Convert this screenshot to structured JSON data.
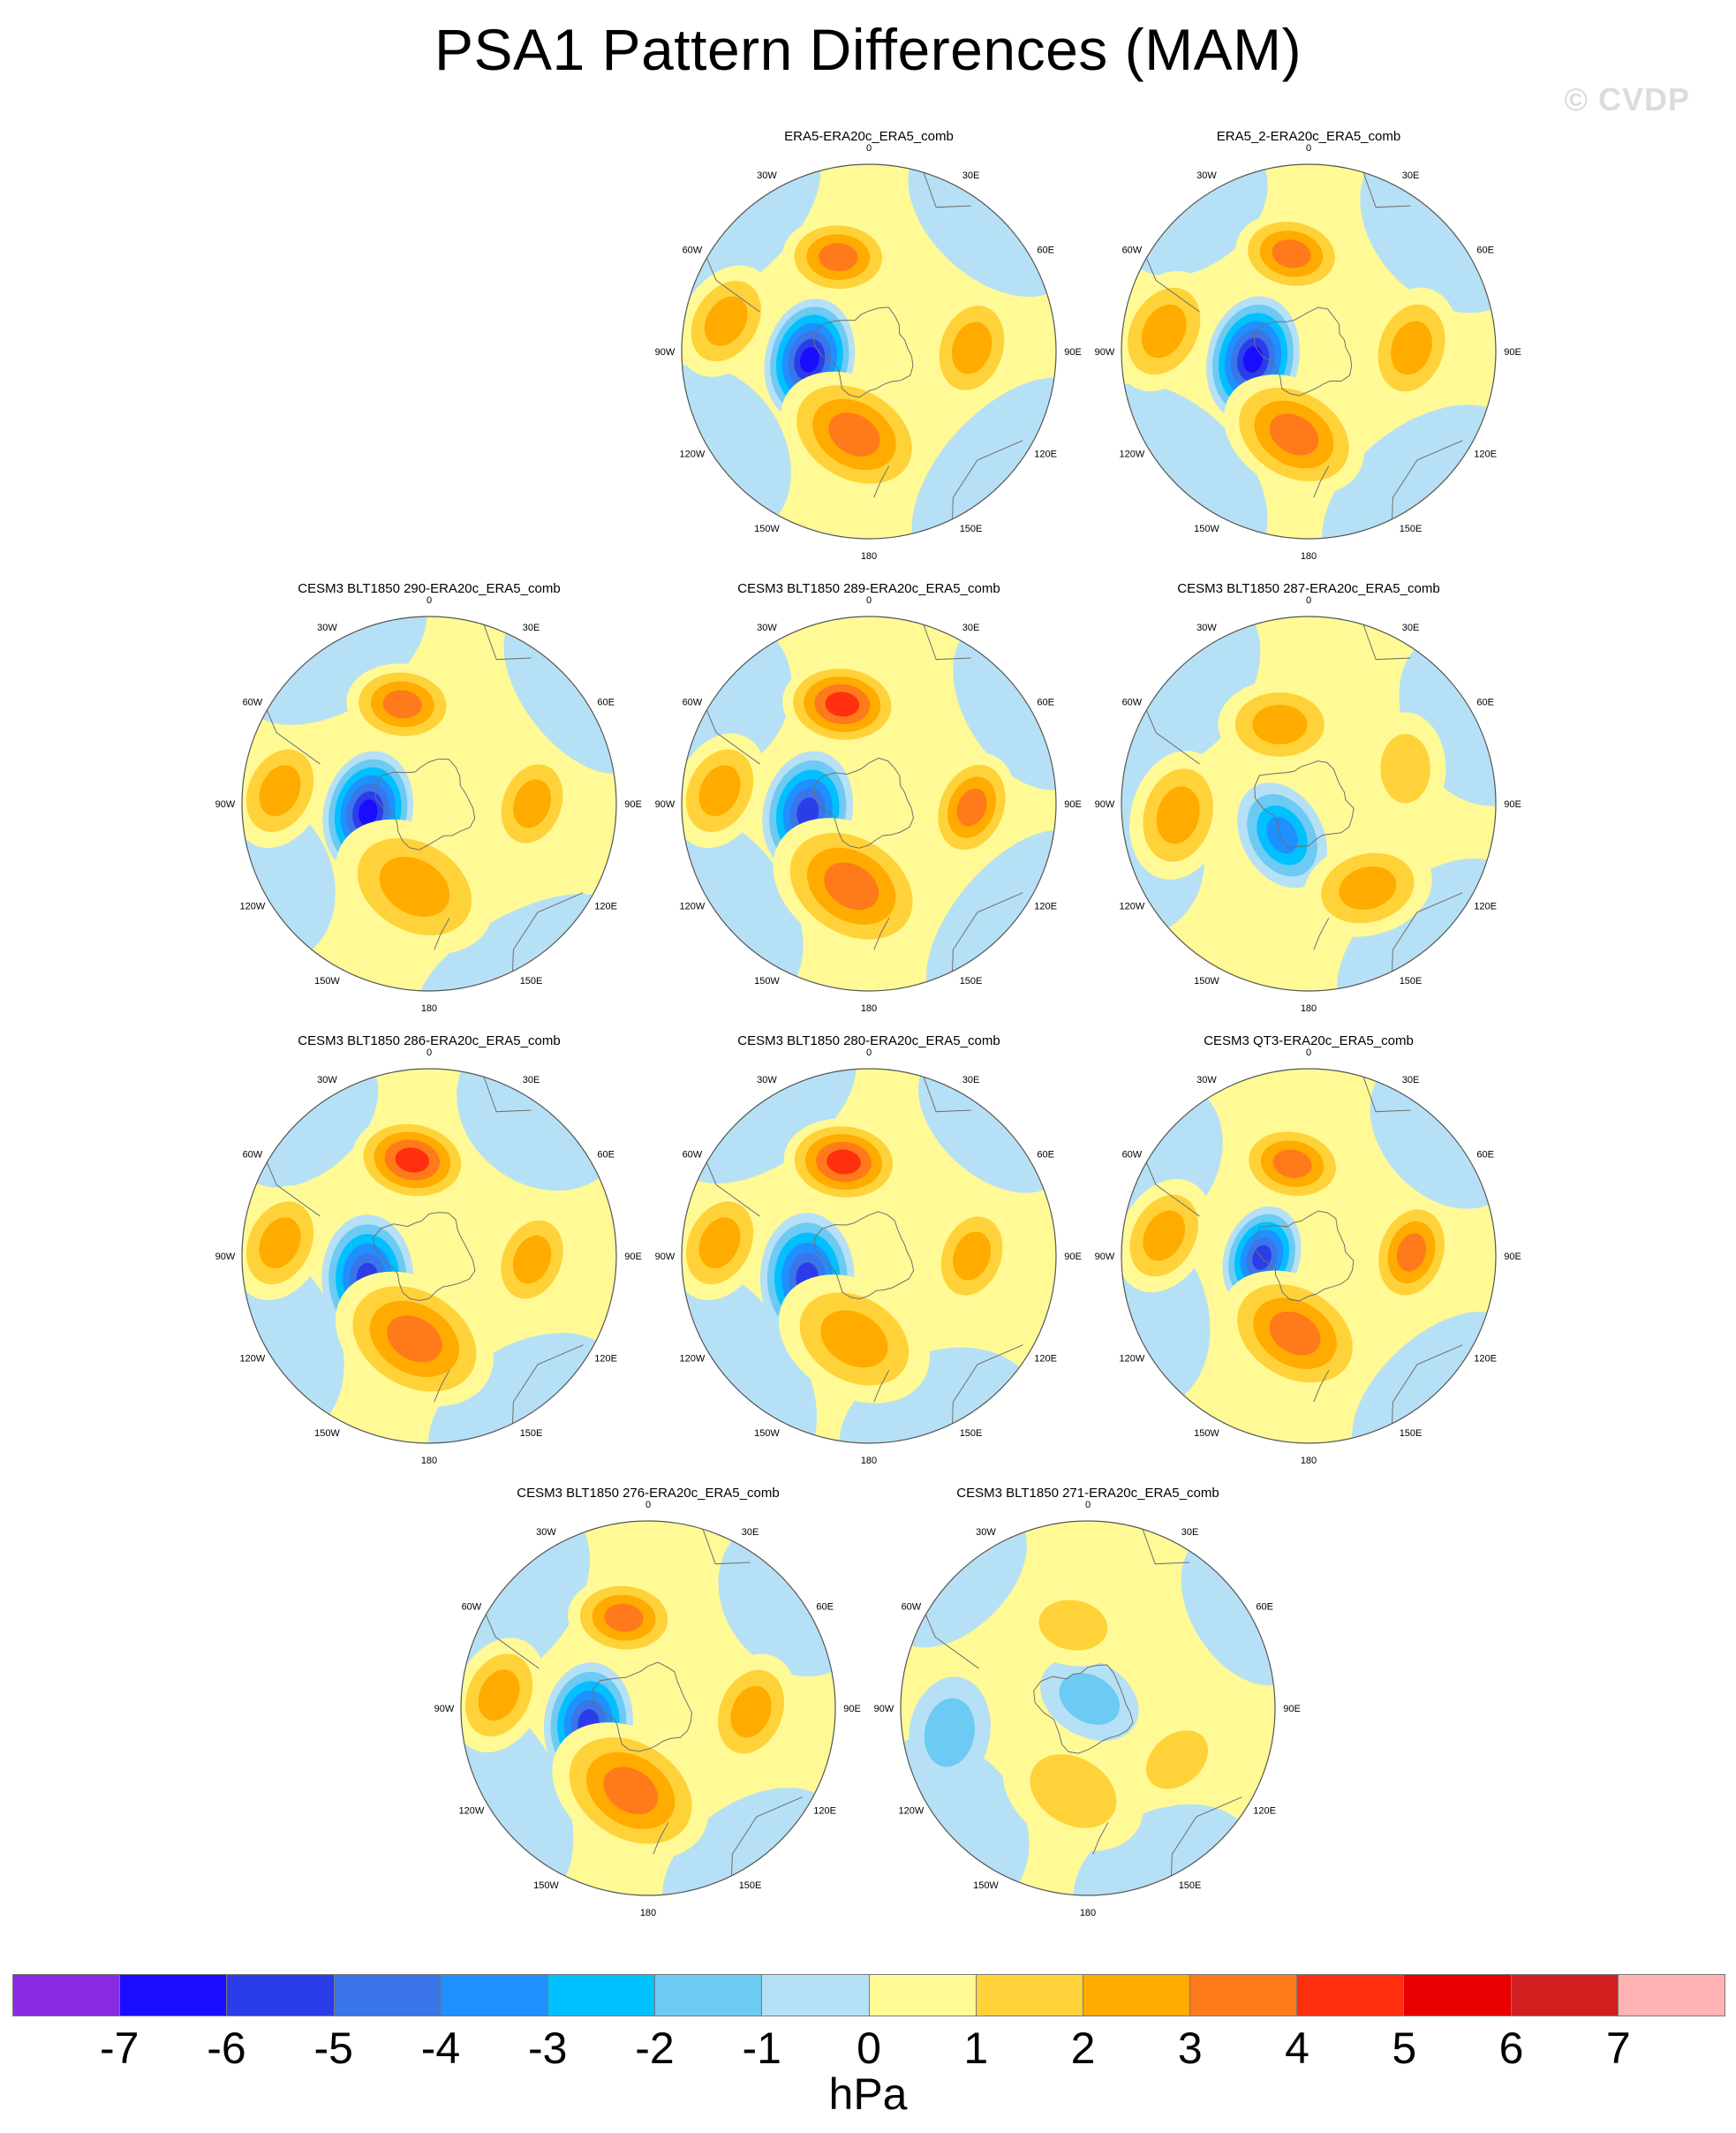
{
  "title": "PSA1 Pattern Differences (MAM)",
  "watermark": "© CVDP",
  "units": "hPa",
  "lon_labels": [
    "0",
    "30E",
    "60E",
    "90E",
    "120E",
    "150E",
    "180",
    "150W",
    "120W",
    "90W",
    "60W",
    "30W"
  ],
  "colors": {
    "background": "#ffffff",
    "outline": "#555555",
    "coast": "#707070"
  },
  "chart_data": {
    "type": "heatmap",
    "projection": "polar stereographic (Southern Hemisphere)",
    "title": "PSA1 Pattern Differences (MAM)",
    "units": "hPa",
    "colorbar": {
      "levels": [
        -7,
        -6,
        -5,
        -4,
        -3,
        -2,
        -1,
        0,
        1,
        2,
        3,
        4,
        5,
        6,
        7
      ],
      "colors": [
        "#8a2be2",
        "#1a0dff",
        "#2a3de8",
        "#3a75ea",
        "#1e90ff",
        "#00c0ff",
        "#6ccaf3",
        "#b6e0f5",
        "#fffa96",
        "#ffd23a",
        "#ffab00",
        "#ff7a1a",
        "#ff3010",
        "#e80000",
        "#d22020",
        "#ffb3b3"
      ]
    },
    "panels": [
      {
        "title": "ERA5-ERA20c_ERA5_comb",
        "features": [
          {
            "kind": "min",
            "lon": -98,
            "r": 0.32,
            "value": -6.3,
            "size": 0.33
          },
          {
            "kind": "max",
            "lon": -18,
            "r": 0.53,
            "value": 3.6,
            "size": 0.3
          },
          {
            "kind": "max",
            "lon": -170,
            "r": 0.45,
            "value": 3.4,
            "size": 0.42
          },
          {
            "kind": "max",
            "lon": 88,
            "r": 0.55,
            "value": 2.2,
            "size": 0.32
          },
          {
            "kind": "max",
            "lon": -78,
            "r": 0.78,
            "value": 2.4,
            "size": 0.32
          }
        ]
      },
      {
        "title": "ERA5_2-ERA20c_ERA5_comb",
        "features": [
          {
            "kind": "min",
            "lon": -98,
            "r": 0.3,
            "value": -6.2,
            "size": 0.34
          },
          {
            "kind": "max",
            "lon": -10,
            "r": 0.53,
            "value": 3.4,
            "size": 0.3
          },
          {
            "kind": "max",
            "lon": -170,
            "r": 0.45,
            "value": 3.6,
            "size": 0.4
          },
          {
            "kind": "max",
            "lon": 88,
            "r": 0.55,
            "value": 2.3,
            "size": 0.33
          },
          {
            "kind": "max",
            "lon": -82,
            "r": 0.78,
            "value": 2.6,
            "size": 0.34
          }
        ]
      },
      {
        "title": "CESM3 BLT1850 290-ERA20c_ERA5_comb",
        "features": [
          {
            "kind": "min",
            "lon": -98,
            "r": 0.33,
            "value": -6.4,
            "size": 0.33
          },
          {
            "kind": "max",
            "lon": -15,
            "r": 0.55,
            "value": 3.7,
            "size": 0.3
          },
          {
            "kind": "max",
            "lon": -170,
            "r": 0.45,
            "value": 2.6,
            "size": 0.45
          },
          {
            "kind": "max",
            "lon": 90,
            "r": 0.55,
            "value": 3.0,
            "size": 0.3
          },
          {
            "kind": "max",
            "lon": -85,
            "r": 0.8,
            "value": 2.7,
            "size": 0.32
          }
        ]
      },
      {
        "title": "CESM3 BLT1850 289-ERA20c_ERA5_comb",
        "features": [
          {
            "kind": "min",
            "lon": -98,
            "r": 0.33,
            "value": -6.0,
            "size": 0.33
          },
          {
            "kind": "max",
            "lon": -15,
            "r": 0.55,
            "value": 4.4,
            "size": 0.32
          },
          {
            "kind": "max",
            "lon": -168,
            "r": 0.45,
            "value": 3.6,
            "size": 0.45
          },
          {
            "kind": "max",
            "lon": 92,
            "r": 0.55,
            "value": 3.4,
            "size": 0.3
          },
          {
            "kind": "max",
            "lon": -85,
            "r": 0.8,
            "value": 2.9,
            "size": 0.32
          }
        ]
      },
      {
        "title": "CESM3 BLT1850 287-ERA20c_ERA5_comb",
        "features": [
          {
            "kind": "min",
            "lon": -140,
            "r": 0.22,
            "value": -3.6,
            "size": 0.3
          },
          {
            "kind": "max",
            "lon": -20,
            "r": 0.45,
            "value": 2.6,
            "size": 0.33
          },
          {
            "kind": "max",
            "lon": 145,
            "r": 0.55,
            "value": 3.0,
            "size": 0.35
          },
          {
            "kind": "max",
            "lon": -95,
            "r": 0.7,
            "value": 2.3,
            "size": 0.35
          },
          {
            "kind": "max",
            "lon": 70,
            "r": 0.55,
            "value": 1.6,
            "size": 0.3
          }
        ]
      },
      {
        "title": "CESM3 BLT1850 286-ERA20c_ERA5_comb",
        "features": [
          {
            "kind": "min",
            "lon": -110,
            "r": 0.35,
            "value": -5.2,
            "size": 0.34
          },
          {
            "kind": "max",
            "lon": -10,
            "r": 0.52,
            "value": 4.6,
            "size": 0.32
          },
          {
            "kind": "max",
            "lon": -170,
            "r": 0.45,
            "value": 3.8,
            "size": 0.45
          },
          {
            "kind": "max",
            "lon": 92,
            "r": 0.55,
            "value": 3.0,
            "size": 0.3
          },
          {
            "kind": "max",
            "lon": -85,
            "r": 0.8,
            "value": 2.8,
            "size": 0.32
          }
        ]
      },
      {
        "title": "CESM3 BLT1850 280-ERA20c_ERA5_comb",
        "features": [
          {
            "kind": "min",
            "lon": -110,
            "r": 0.35,
            "value": -5.5,
            "size": 0.35
          },
          {
            "kind": "max",
            "lon": -15,
            "r": 0.52,
            "value": 4.5,
            "size": 0.32
          },
          {
            "kind": "max",
            "lon": -170,
            "r": 0.45,
            "value": 3.0,
            "size": 0.43
          },
          {
            "kind": "max",
            "lon": 90,
            "r": 0.55,
            "value": 3.0,
            "size": 0.3
          },
          {
            "kind": "max",
            "lon": -85,
            "r": 0.8,
            "value": 2.8,
            "size": 0.32
          }
        ]
      },
      {
        "title": "CESM3 QT3-ERA20c_ERA5_comb",
        "features": [
          {
            "kind": "min",
            "lon": -92,
            "r": 0.25,
            "value": -6.0,
            "size": 0.28
          },
          {
            "kind": "max",
            "lon": -10,
            "r": 0.5,
            "value": 3.4,
            "size": 0.3
          },
          {
            "kind": "max",
            "lon": -170,
            "r": 0.42,
            "value": 3.6,
            "size": 0.42
          },
          {
            "kind": "max",
            "lon": 88,
            "r": 0.55,
            "value": 3.3,
            "size": 0.3
          },
          {
            "kind": "max",
            "lon": -82,
            "r": 0.78,
            "value": 2.6,
            "size": 0.32
          }
        ]
      },
      {
        "title": "CESM3 BLT1850 276-ERA20c_ERA5_comb",
        "features": [
          {
            "kind": "min",
            "lon": -105,
            "r": 0.33,
            "value": -6.0,
            "size": 0.33
          },
          {
            "kind": "max",
            "lon": -15,
            "r": 0.5,
            "value": 3.6,
            "size": 0.3
          },
          {
            "kind": "max",
            "lon": -168,
            "r": 0.45,
            "value": 3.8,
            "size": 0.45
          },
          {
            "kind": "max",
            "lon": 92,
            "r": 0.55,
            "value": 2.4,
            "size": 0.32
          },
          {
            "kind": "max",
            "lon": -85,
            "r": 0.8,
            "value": 2.7,
            "size": 0.32
          }
        ]
      },
      {
        "title": "CESM3 BLT1850 271-ERA20c_ERA5_comb",
        "features": [
          {
            "kind": "min",
            "lon": 10,
            "r": 0.05,
            "value": -1.4,
            "size": 0.28
          },
          {
            "kind": "max",
            "lon": -10,
            "r": 0.45,
            "value": 1.4,
            "size": 0.3
          },
          {
            "kind": "max",
            "lon": -170,
            "r": 0.45,
            "value": 1.3,
            "size": 0.4
          },
          {
            "kind": "max",
            "lon": 120,
            "r": 0.55,
            "value": 2.0,
            "size": 0.3
          },
          {
            "kind": "min",
            "lon": -100,
            "r": 0.75,
            "value": -1.2,
            "size": 0.3
          }
        ]
      }
    ]
  }
}
